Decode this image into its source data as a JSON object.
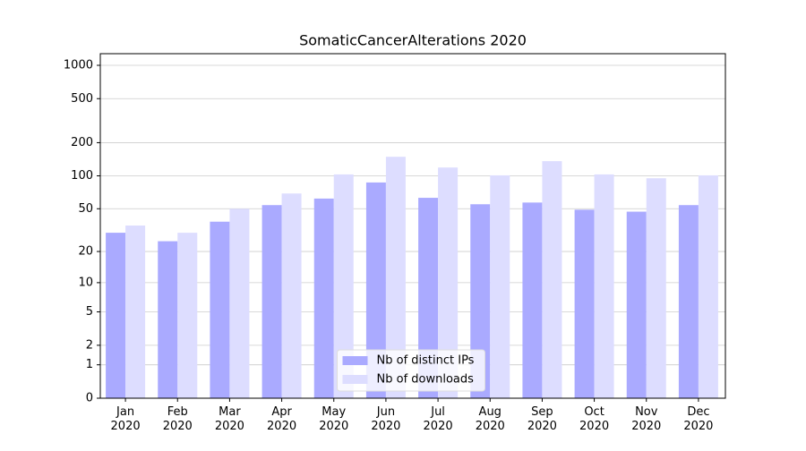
{
  "chart_data": {
    "type": "bar",
    "title": "SomaticCancerAlterations 2020",
    "scale": "log1p",
    "categories": [
      "Jan\n2020",
      "Feb\n2020",
      "Mar\n2020",
      "Apr\n2020",
      "May\n2020",
      "Jun\n2020",
      "Jul\n2020",
      "Aug\n2020",
      "Sep\n2020",
      "Oct\n2020",
      "Nov\n2020",
      "Dec\n2020"
    ],
    "series": [
      {
        "name": "Nb of distinct IPs",
        "color": "#aaaaff",
        "values": [
          30,
          25,
          38,
          54,
          62,
          87,
          63,
          55,
          57,
          49,
          47,
          54
        ]
      },
      {
        "name": "Nb of downloads",
        "color": "#ddddff",
        "values": [
          35,
          30,
          50,
          69,
          103,
          149,
          119,
          101,
          136,
          103,
          95,
          101
        ]
      }
    ],
    "ylim": [
      0,
      1273
    ],
    "yticks": [
      0,
      1,
      2,
      5,
      10,
      20,
      50,
      100,
      200,
      500,
      1000
    ],
    "grid": true,
    "legend": "lower center"
  }
}
